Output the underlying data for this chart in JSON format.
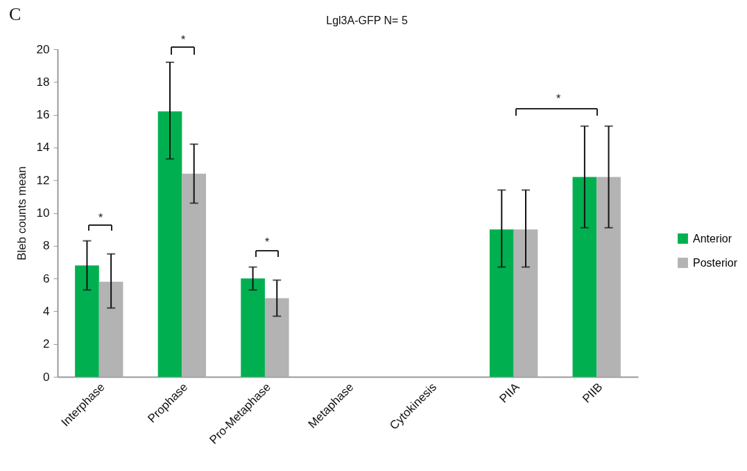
{
  "chart_data": {
    "type": "bar",
    "title": "Lgl3A-GFP N= 5",
    "ylabel": "Bleb counts mean",
    "categories": [
      "Interphase",
      "Prophase",
      "Pro-Metaphase",
      "Metaphase",
      "Cytokinesis",
      "PIIA",
      "PIIB"
    ],
    "series": [
      {
        "name": "Anterior",
        "color": "#00b050",
        "values": [
          6.8,
          16.2,
          6.0,
          0,
          0,
          9.0,
          12.2
        ],
        "errors": [
          [
            5.3,
            8.3
          ],
          [
            13.3,
            19.2
          ],
          [
            5.3,
            6.7
          ],
          null,
          null,
          [
            6.7,
            11.4
          ],
          [
            9.1,
            15.3
          ]
        ]
      },
      {
        "name": "Posterior",
        "color": "#b3b3b3",
        "values": [
          5.8,
          12.4,
          4.8,
          0,
          0,
          9.0,
          12.2
        ],
        "errors": [
          [
            4.2,
            7.5
          ],
          [
            10.6,
            14.2
          ],
          [
            3.7,
            5.9
          ],
          null,
          null,
          [
            6.7,
            11.4
          ],
          [
            9.1,
            15.3
          ]
        ]
      }
    ],
    "ylim": [
      0,
      20
    ],
    "yticks": [
      0,
      2,
      4,
      6,
      8,
      10,
      12,
      14,
      16,
      18,
      20
    ],
    "legend": "right",
    "annotations": [
      "C",
      "*",
      "*",
      "*",
      "*"
    ]
  }
}
